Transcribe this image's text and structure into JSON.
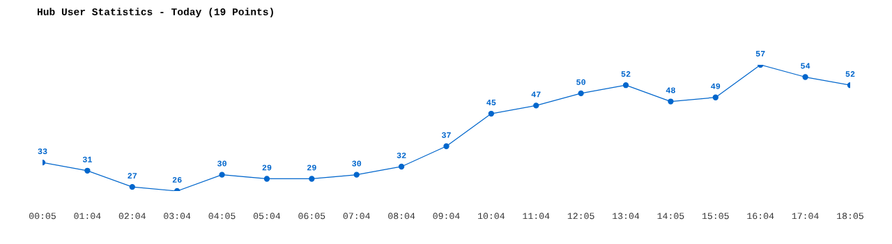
{
  "chart_data": {
    "type": "line",
    "title": "Hub User Statistics - Today (19 Points)",
    "categories": [
      "00:05",
      "01:04",
      "02:04",
      "03:04",
      "04:05",
      "05:04",
      "06:05",
      "07:04",
      "08:04",
      "09:04",
      "10:04",
      "11:04",
      "12:05",
      "13:04",
      "14:05",
      "15:05",
      "16:04",
      "17:04",
      "18:05"
    ],
    "series": [
      {
        "color": "#0066cc",
        "values": [
          33,
          31,
          27,
          26,
          30,
          29,
          29,
          30,
          32,
          37,
          45,
          47,
          50,
          52,
          48,
          49,
          57,
          54,
          52
        ]
      }
    ],
    "data_labels": true,
    "marker": "circle",
    "line_style": "solid",
    "grid": false,
    "legend": false
  }
}
